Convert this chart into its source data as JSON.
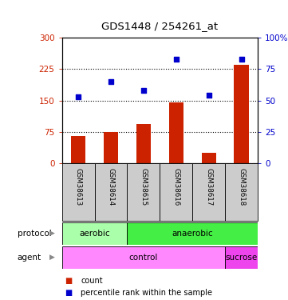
{
  "title": "GDS1448 / 254261_at",
  "samples": [
    "GSM38613",
    "GSM38614",
    "GSM38615",
    "GSM38616",
    "GSM38617",
    "GSM38618"
  ],
  "counts": [
    65,
    75,
    95,
    145,
    25,
    235
  ],
  "percentiles": [
    53,
    65,
    58,
    83,
    54,
    83
  ],
  "left_yticks": [
    0,
    75,
    150,
    225,
    300
  ],
  "right_yticks": [
    0,
    25,
    50,
    75,
    100
  ],
  "bar_color": "#cc2200",
  "scatter_color": "#0000cc",
  "bar_width": 0.45,
  "protocol_labels": [
    {
      "label": "aerobic",
      "start": 0,
      "end": 2,
      "color": "#aaffaa"
    },
    {
      "label": "anaerobic",
      "start": 2,
      "end": 6,
      "color": "#44ee44"
    }
  ],
  "agent_labels": [
    {
      "label": "control",
      "start": 0,
      "end": 5,
      "color": "#ff88ff"
    },
    {
      "label": "sucrose",
      "start": 5,
      "end": 6,
      "color": "#ee44ee"
    }
  ],
  "protocol_row_label": "protocol",
  "agent_row_label": "agent",
  "legend_count_label": "count",
  "legend_pct_label": "percentile rank within the sample",
  "bg_color": "#ffffff",
  "plot_bg_color": "#ffffff",
  "dotted_lines": [
    75,
    150,
    225
  ],
  "sample_bg_color": "#cccccc"
}
